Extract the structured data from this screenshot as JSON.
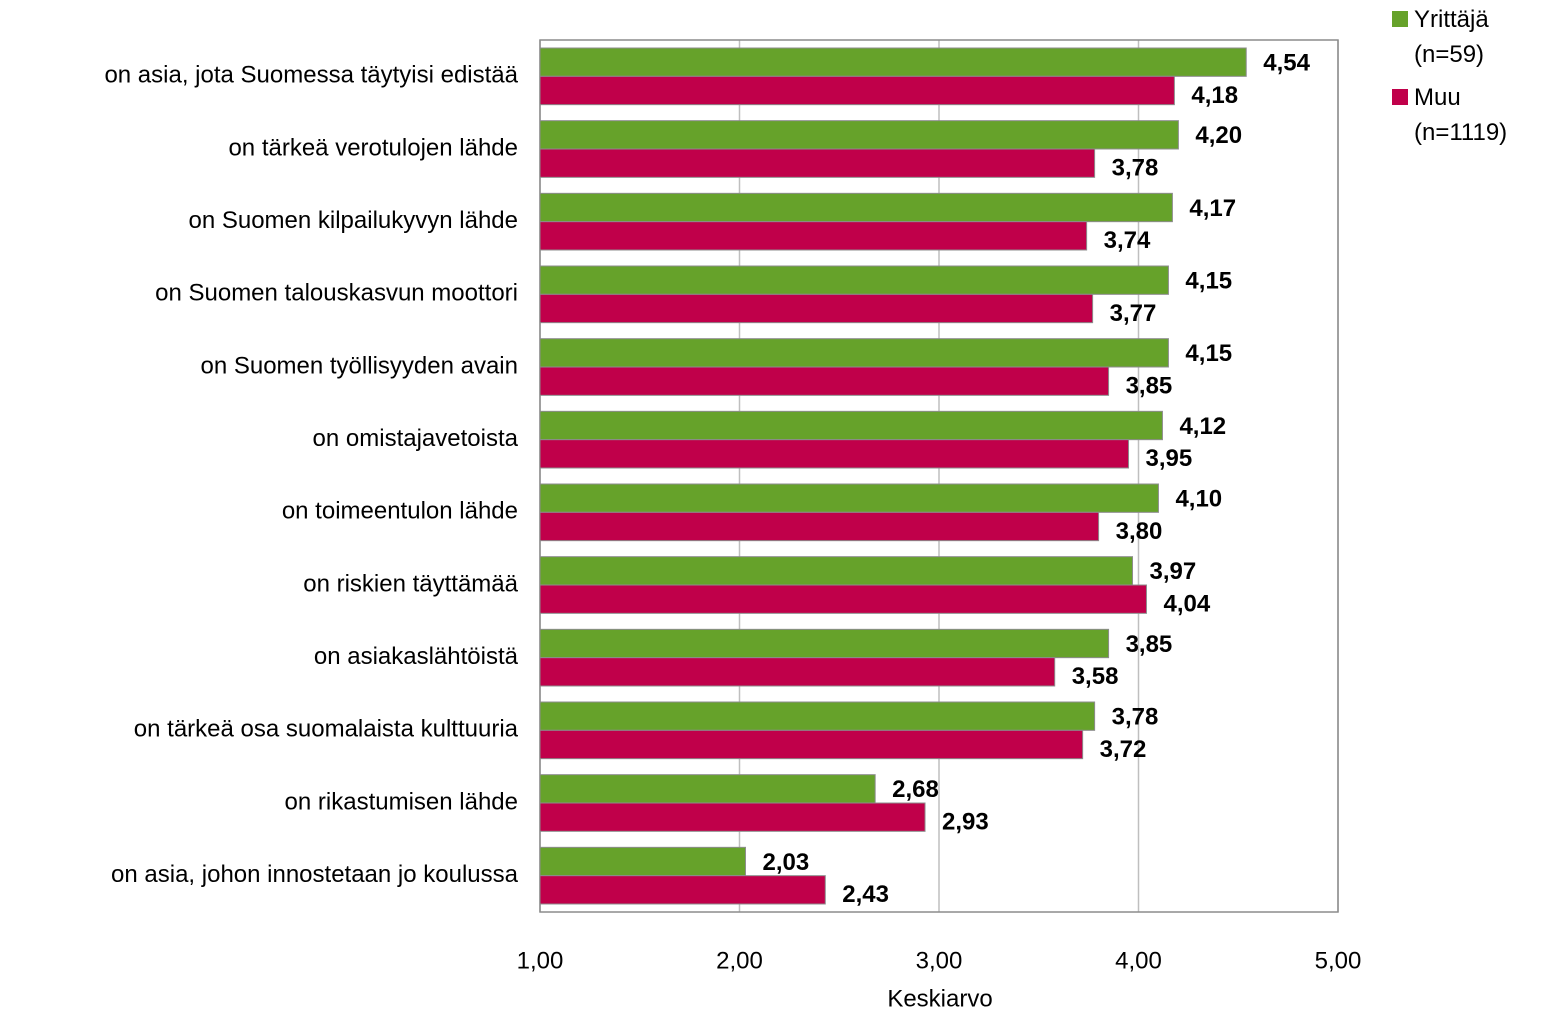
{
  "chart_data": {
    "type": "bar",
    "orientation": "horizontal",
    "x_label": "Keskiarvo",
    "categories": [
      "on asia, jota Suomessa täytyisi edistää",
      "on tärkeä verotulojen lähde",
      "on Suomen kilpailukyvyn lähde",
      "on Suomen talouskasvun moottori",
      "on Suomen työllisyyden avain",
      "on omistajavetoista",
      "on toimeentulon lähde",
      "on riskien täyttämää",
      "on asiakaslähtöistä",
      "on tärkeä osa suomalaista kulttuuria",
      "on rikastumisen lähde",
      "on asia, johon innostetaan jo koulussa"
    ],
    "series": [
      {
        "name": "Yrittäjä (n=59)",
        "color": "#66a22a",
        "values": [
          4.54,
          4.2,
          4.17,
          4.15,
          4.15,
          4.12,
          4.1,
          3.97,
          3.85,
          3.78,
          2.68,
          2.03
        ],
        "value_labels": [
          "4,54",
          "4,20",
          "4,17",
          "4,15",
          "4,15",
          "4,12",
          "4,10",
          "3,97",
          "3,85",
          "3,78",
          "2,68",
          "2,03"
        ]
      },
      {
        "name": "Muu (n=1119)",
        "color": "#c0004a",
        "values": [
          4.18,
          3.78,
          3.74,
          3.77,
          3.85,
          3.95,
          3.8,
          4.04,
          3.58,
          3.72,
          2.93,
          2.43
        ],
        "value_labels": [
          "4,18",
          "3,78",
          "3,74",
          "3,77",
          "3,85",
          "3,95",
          "3,80",
          "4,04",
          "3,58",
          "3,72",
          "2,93",
          "2,43"
        ]
      }
    ],
    "xlim": [
      1,
      5
    ],
    "xticks": [
      {
        "value": 1,
        "label": "1,00"
      },
      {
        "value": 2,
        "label": "2,00"
      },
      {
        "value": 3,
        "label": "3,00"
      },
      {
        "value": 4,
        "label": "4,00"
      },
      {
        "value": 5,
        "label": "5,00"
      }
    ],
    "grid": true,
    "legend": "top-right"
  }
}
